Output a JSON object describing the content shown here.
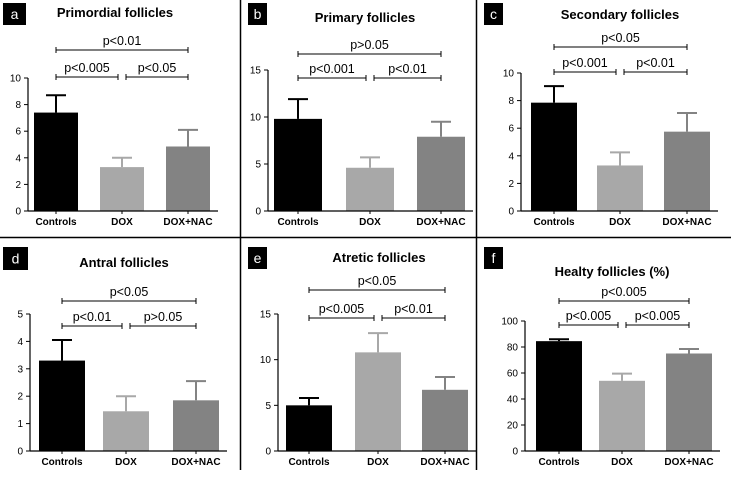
{
  "chart_data": [
    {
      "type": "bar",
      "panel_label": "a",
      "title": "Primordial follicles",
      "categories": [
        "Controls",
        "DOX",
        "DOX+NAC"
      ],
      "values": [
        7.4,
        3.3,
        4.85
      ],
      "errors": [
        1.3,
        0.7,
        1.25
      ],
      "bar_colors": [
        "#000000",
        "#a8a8a8",
        "#838383"
      ],
      "ylim": [
        0,
        10
      ],
      "yticks": [
        "0",
        "2",
        "4",
        "6",
        "8",
        "10"
      ],
      "xlabel": "",
      "ylabel": "",
      "comparisons": [
        {
          "label": "p<0.01",
          "from": 0,
          "to": 2,
          "level": 1
        },
        {
          "label": "p<0.005",
          "from": 0,
          "to": 1,
          "level": 0
        },
        {
          "label": "p<0.05",
          "from": 1,
          "to": 2,
          "level": 0
        }
      ]
    },
    {
      "type": "bar",
      "panel_label": "b",
      "title": "Primary follicles",
      "categories": [
        "Controls",
        "DOX",
        "DOX+NAC"
      ],
      "values": [
        9.8,
        4.6,
        7.9
      ],
      "errors": [
        2.1,
        1.1,
        1.6
      ],
      "bar_colors": [
        "#000000",
        "#a8a8a8",
        "#838383"
      ],
      "ylim": [
        0,
        15
      ],
      "yticks": [
        "0",
        "5",
        "10",
        "15"
      ],
      "xlabel": "",
      "ylabel": "",
      "comparisons": [
        {
          "label": "p>0.05",
          "from": 0,
          "to": 2,
          "level": 1
        },
        {
          "label": "p<0.001",
          "from": 0,
          "to": 1,
          "level": 0
        },
        {
          "label": "p<0.01",
          "from": 1,
          "to": 2,
          "level": 0
        }
      ]
    },
    {
      "type": "bar",
      "panel_label": "c",
      "title": "Secondary follicles",
      "categories": [
        "Controls",
        "DOX",
        "DOX+NAC"
      ],
      "values": [
        7.85,
        3.3,
        5.75
      ],
      "errors": [
        1.2,
        0.95,
        1.35
      ],
      "bar_colors": [
        "#000000",
        "#a8a8a8",
        "#838383"
      ],
      "ylim": [
        0,
        10
      ],
      "yticks": [
        "0",
        "2",
        "4",
        "6",
        "8",
        "10"
      ],
      "xlabel": "",
      "ylabel": "",
      "comparisons": [
        {
          "label": "p<0.05",
          "from": 0,
          "to": 2,
          "level": 1
        },
        {
          "label": "p<0.001",
          "from": 0,
          "to": 1,
          "level": 0
        },
        {
          "label": "p<0.01",
          "from": 1,
          "to": 2,
          "level": 0
        }
      ]
    },
    {
      "type": "bar",
      "panel_label": "d",
      "title": "Antral follicles",
      "categories": [
        "Controls",
        "DOX",
        "DOX+NAC"
      ],
      "values": [
        3.3,
        1.45,
        1.85
      ],
      "errors": [
        0.75,
        0.55,
        0.7
      ],
      "bar_colors": [
        "#000000",
        "#a8a8a8",
        "#838383"
      ],
      "ylim": [
        0,
        5
      ],
      "yticks": [
        "0",
        "1",
        "2",
        "3",
        "4",
        "5"
      ],
      "xlabel": "",
      "ylabel": "",
      "comparisons": [
        {
          "label": "p<0.05",
          "from": 0,
          "to": 2,
          "level": 1
        },
        {
          "label": "p<0.01",
          "from": 0,
          "to": 1,
          "level": 0
        },
        {
          "label": "p>0.05",
          "from": 1,
          "to": 2,
          "level": 0
        }
      ]
    },
    {
      "type": "bar",
      "panel_label": "e",
      "title": "Atretic follicles",
      "categories": [
        "Controls",
        "DOX",
        "DOX+NAC"
      ],
      "values": [
        5.0,
        10.8,
        6.7
      ],
      "errors": [
        0.8,
        2.1,
        1.4
      ],
      "bar_colors": [
        "#000000",
        "#a8a8a8",
        "#838383"
      ],
      "ylim": [
        0,
        15
      ],
      "yticks": [
        "0",
        "5",
        "10",
        "15"
      ],
      "xlabel": "",
      "ylabel": "",
      "comparisons": [
        {
          "label": "p<0.05",
          "from": 0,
          "to": 2,
          "level": 1
        },
        {
          "label": "p<0.005",
          "from": 0,
          "to": 1,
          "level": 0
        },
        {
          "label": "p<0.01",
          "from": 1,
          "to": 2,
          "level": 0
        }
      ]
    },
    {
      "type": "bar",
      "panel_label": "f",
      "title": "Healty follicles (%)",
      "categories": [
        "Controls",
        "DOX",
        "DOX+NAC"
      ],
      "values": [
        84.5,
        54,
        75
      ],
      "errors": [
        1.5,
        5.5,
        3.5
      ],
      "bar_colors": [
        "#000000",
        "#a8a8a8",
        "#838383"
      ],
      "ylim": [
        0,
        100
      ],
      "yticks": [
        "0",
        "20",
        "40",
        "60",
        "80",
        "100"
      ],
      "xlabel": "",
      "ylabel": "",
      "comparisons": [
        {
          "label": "p<0.005",
          "from": 0,
          "to": 2,
          "level": 1
        },
        {
          "label": "p<0.005",
          "from": 0,
          "to": 1,
          "level": 0
        },
        {
          "label": "p<0.005",
          "from": 1,
          "to": 2,
          "level": 0
        }
      ]
    }
  ]
}
